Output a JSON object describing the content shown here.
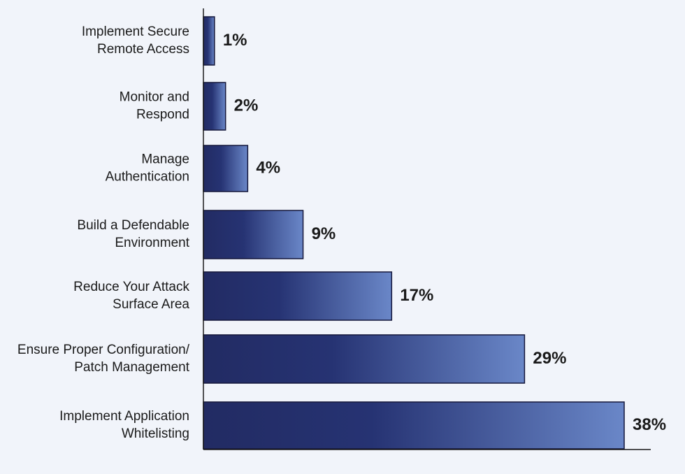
{
  "chart_data": {
    "type": "bar",
    "orientation": "horizontal",
    "categories": [
      [
        "Implement Secure",
        "Remote Access"
      ],
      [
        "Monitor and",
        "Respond"
      ],
      [
        "Manage",
        "Authentication"
      ],
      [
        "Build a Defendable",
        "Environment"
      ],
      [
        "Reduce Your Attack",
        "Surface Area"
      ],
      [
        "Ensure Proper Configuration/",
        "Patch Management"
      ],
      [
        "Implement Application",
        "Whitelisting"
      ]
    ],
    "values": [
      1,
      2,
      4,
      9,
      17,
      29,
      38
    ],
    "value_labels": [
      "1%",
      "2%",
      "4%",
      "9%",
      "17%",
      "29%",
      "38%"
    ],
    "title": "",
    "xlabel": "",
    "ylabel": "",
    "xlim": [
      0,
      38
    ],
    "grid": false,
    "legend": "none",
    "colors": {
      "bar_dark": "#222b63",
      "bar_mid": "#263373",
      "bar_light": "#6a87c8",
      "bar_outline": "#14163a",
      "background": "#f1f4fa",
      "text": "#1a1a1a"
    }
  }
}
